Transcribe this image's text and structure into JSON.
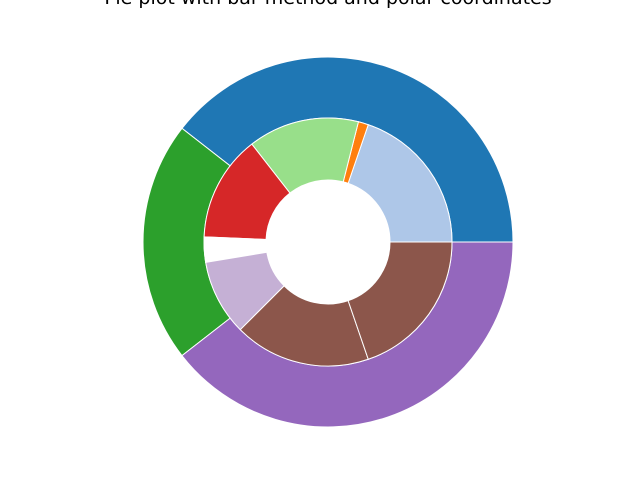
{
  "chart_data": {
    "type": "pie",
    "title": "Pie plot with bar method and polar coordinates",
    "projection": "polar",
    "outer_ring": {
      "values": [
        60,
        32,
        60
      ],
      "colors": [
        "#1f77b4",
        "#2ca02c",
        "#9467bd"
      ]
    },
    "inner_ring": {
      "values": [
        30,
        0,
        2,
        22,
        21,
        5,
        15,
        27,
        30
      ],
      "colors": [
        "#aec7e8",
        "#ff7f0e",
        "#ff7f0e",
        "#98df8a",
        "#d62728",
        "#ffffff",
        "#c5b0d5",
        "#8c564b",
        "#8c564b"
      ]
    },
    "background": "#ffffff",
    "edgecolor": "#ffffff",
    "grid": false,
    "axis": "off"
  }
}
